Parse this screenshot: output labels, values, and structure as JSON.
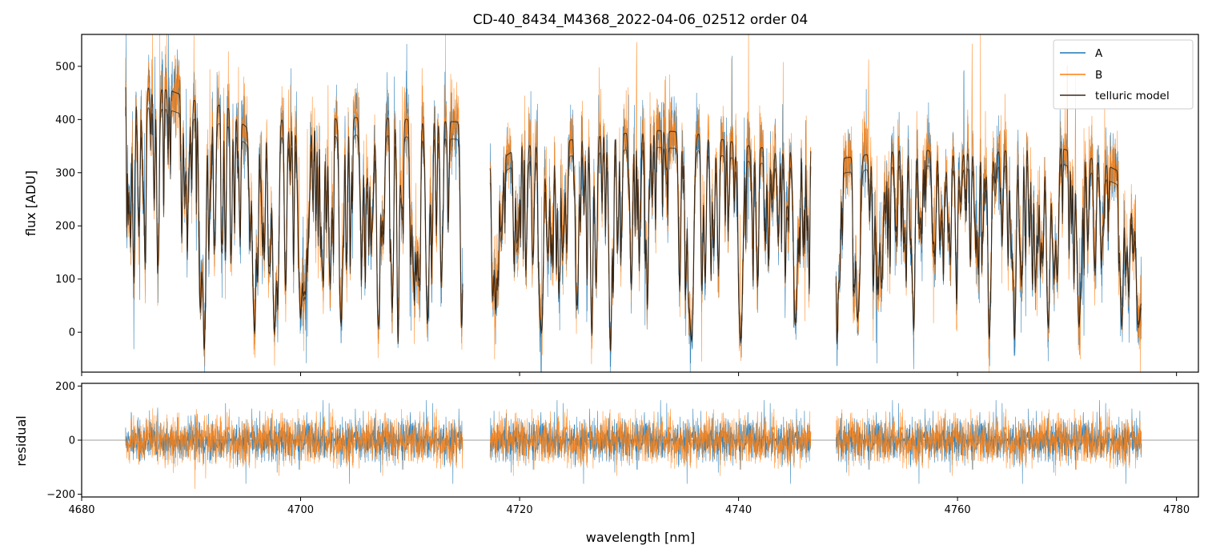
{
  "chart_data": {
    "type": "line",
    "title": "CD-40_8434_M4368_2022-04-06_02512  order 04",
    "xlabel": "wavelength [nm]",
    "xlim": [
      4680,
      4782
    ],
    "x_ticks": [
      4680,
      4700,
      4720,
      4740,
      4760,
      4780
    ],
    "x_tick_labels": [
      "4680",
      "4700",
      "4720",
      "4740",
      "4760",
      "4780"
    ],
    "segments": [
      [
        4684.0,
        4714.8
      ],
      [
        4717.3,
        4746.6
      ],
      [
        4748.9,
        4776.8
      ]
    ],
    "colors": {
      "A": "#1f77b4",
      "B": "#ff7f0e",
      "telluric": "#2b1d10"
    },
    "panels": [
      {
        "name": "flux",
        "ylabel": "flux [ADU]",
        "ylim": [
          -75,
          560
        ],
        "y_ticks": [
          0,
          100,
          200,
          300,
          400,
          500
        ],
        "y_tick_labels": [
          "0",
          "100",
          "200",
          "300",
          "400",
          "500"
        ],
        "legend_position": "upper right",
        "series": [
          {
            "name": "A",
            "approx_level": 300,
            "noise_amplitude": 90
          },
          {
            "name": "B",
            "approx_level": 300,
            "noise_amplitude": 90
          },
          {
            "name": "telluric model",
            "approx_level": 300
          }
        ],
        "telluric_continuum_points": [
          [
            4684,
            465
          ],
          [
            4688,
            455
          ],
          [
            4690,
            440
          ],
          [
            4691.5,
            420
          ],
          [
            4693,
            430
          ],
          [
            4694.5,
            395
          ],
          [
            4696,
            370
          ],
          [
            4698,
            400
          ],
          [
            4702,
            400
          ],
          [
            4706,
            405
          ],
          [
            4710,
            400
          ],
          [
            4714.8,
            395
          ],
          [
            4717.3,
            310
          ],
          [
            4720,
            350
          ],
          [
            4724,
            360
          ],
          [
            4728,
            370
          ],
          [
            4732,
            380
          ],
          [
            4736,
            375
          ],
          [
            4740,
            355
          ],
          [
            4744,
            340
          ],
          [
            4746.6,
            365
          ],
          [
            4748.9,
            325
          ],
          [
            4752,
            335
          ],
          [
            4756,
            345
          ],
          [
            4760,
            335
          ],
          [
            4764,
            340
          ],
          [
            4768,
            355
          ],
          [
            4772,
            330
          ],
          [
            4775,
            300
          ],
          [
            4776.8,
            250
          ]
        ],
        "deep_absorption_lines": [
          4691.2,
          4695.8,
          4697.6,
          4700.0,
          4703.7,
          4707.1,
          4708.9,
          4711.6,
          4714.7,
          4717.8,
          4722.0,
          4726.6,
          4728.3,
          4735.7,
          4740.2,
          4745.2,
          4749.0,
          4750.9,
          4756.0,
          4762.9,
          4765.2,
          4768.3,
          4771.1,
          4775.0,
          4776.5
        ]
      },
      {
        "name": "residual",
        "ylabel": "residual",
        "ylim": [
          -210,
          210
        ],
        "y_ticks": [
          -200,
          0,
          200
        ],
        "y_tick_labels": [
          "−200",
          "0",
          "200"
        ],
        "series": [
          {
            "name": "A",
            "approx_level": 0,
            "noise_amplitude": 90
          },
          {
            "name": "B",
            "approx_level": 0,
            "noise_amplitude": 90
          }
        ]
      }
    ]
  }
}
